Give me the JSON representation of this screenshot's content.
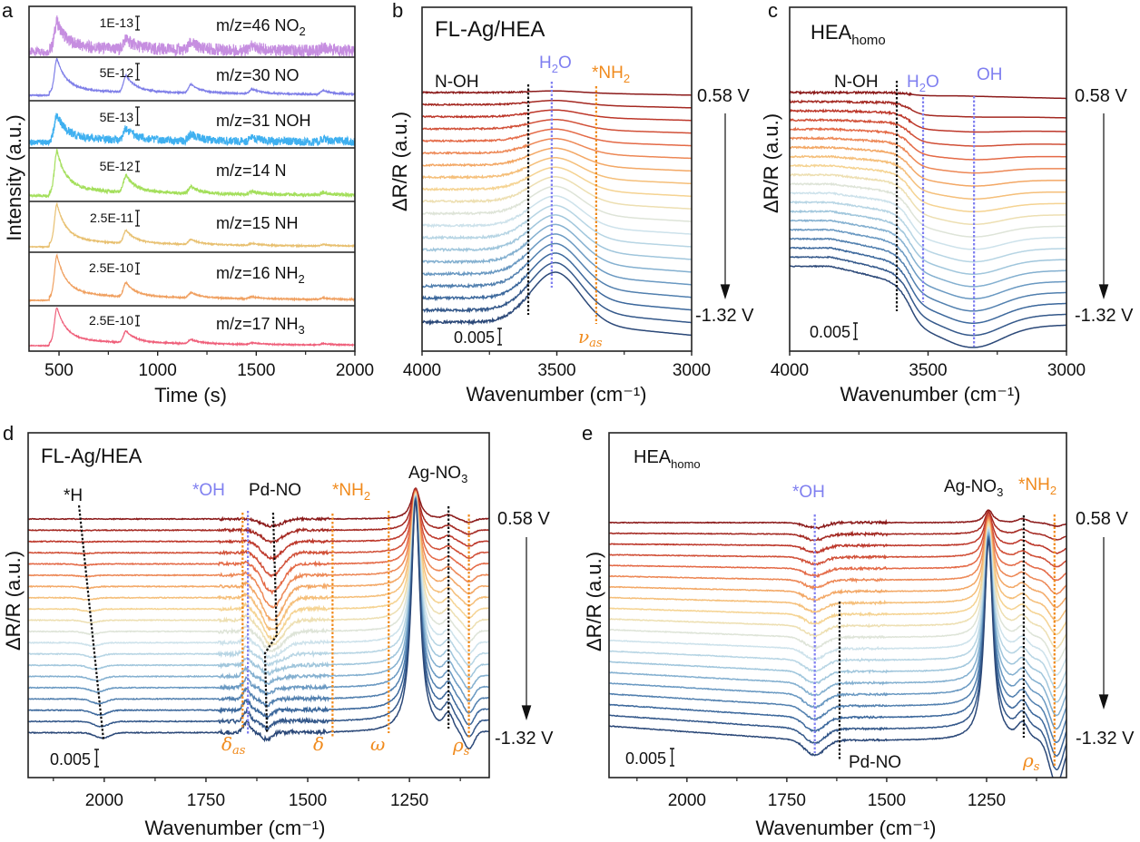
{
  "chart_data": [
    {
      "panel_letter": "a",
      "type": "line",
      "xlabel": "Time (s)",
      "ylabel": "Intensity (a.u.)",
      "xlim": [
        348,
        2000
      ],
      "xticks": [
        500,
        1000,
        1500,
        2000
      ],
      "xtick_labels": [
        "500",
        "1000",
        "1500",
        "2000"
      ],
      "peak_times_s": [
        490,
        840,
        1170,
        1480,
        1840
      ],
      "rows": [
        {
          "label": "m/z=46 NO",
          "sub": "2",
          "scale": "1E-13",
          "color": "#c68ee0",
          "noise": 0.22,
          "peak_amps": [
            1,
            0.38,
            0.26,
            0.15,
            0.12
          ]
        },
        {
          "label": "m/z=30 NO",
          "sub": "",
          "scale": "5E-12",
          "color": "#7f7fe8",
          "noise": 0.02,
          "peak_amps": [
            1,
            0.5,
            0.26,
            0.14,
            0.12
          ]
        },
        {
          "label": "m/z=31 NOH",
          "sub": "",
          "scale": "5E-13",
          "color": "#3fb0f0",
          "noise": 0.16,
          "peak_amps": [
            1,
            0.45,
            0.25,
            0.15,
            0.13
          ]
        },
        {
          "label": "m/z=14 N",
          "sub": "",
          "scale": "5E-12",
          "color": "#a4df5c",
          "noise": 0.04,
          "peak_amps": [
            1,
            0.4,
            0.16,
            0.07,
            0.06
          ]
        },
        {
          "label": "m/z=15 NH",
          "sub": "",
          "scale": "2.5E-11",
          "color": "#e8c070",
          "noise": 0.015,
          "peak_amps": [
            1,
            0.33,
            0.13,
            0.05,
            0.04
          ]
        },
        {
          "label": "m/z=16 NH",
          "sub": "2",
          "scale": "2.5E-10",
          "color": "#f0a060",
          "noise": 0.015,
          "peak_amps": [
            1,
            0.34,
            0.13,
            0.05,
            0.04
          ]
        },
        {
          "label": "m/z=17 NH",
          "sub": "3",
          "scale": "2.5E-10",
          "color": "#ef5f7a",
          "noise": 0.015,
          "peak_amps": [
            1,
            0.33,
            0.12,
            0.05,
            0.04
          ]
        }
      ]
    },
    {
      "panel_letter": "b",
      "type": "line",
      "sample": "FL-Ag/HEA",
      "sample_sub": "",
      "xlabel": "Wavenumber (cm⁻¹)",
      "ylabel": "ΔR/R (a.u.)",
      "xlim": [
        4000,
        3000
      ],
      "xticks": [
        4000,
        3500,
        3000
      ],
      "xtick_labels": [
        "4000",
        "3500",
        "3000"
      ],
      "potential_top": "0.58 V",
      "potential_bottom": "-1.32 V",
      "scale_bar": "0.005",
      "n_curves": 20,
      "offset_step": 0.0037,
      "colormap": [
        "#8b1a1a",
        "#c0392b",
        "#e8704a",
        "#f5b26b",
        "#f5dc9c",
        "#d6e7ee",
        "#a9cde0",
        "#6f9fc6",
        "#3d6a9e",
        "#2b4878"
      ],
      "features": [
        {
          "type": "gauss",
          "center": 3505,
          "width": 130,
          "amp": [
            0.0005,
            0.0153
          ]
        },
        {
          "type": "ramp",
          "from": 3500,
          "to": 3000,
          "amp": [
            -0.0008,
            -0.004
          ]
        },
        {
          "type": "noise",
          "range": [
            4000,
            3600
          ],
          "amp": [
            0.0002,
            0.0004
          ]
        }
      ],
      "lines": [
        {
          "x": 3606,
          "color": "#111111"
        },
        {
          "x": 3519,
          "color": "#7f7ff0"
        },
        {
          "x": 3354,
          "color": "#f08a1c"
        }
      ],
      "labels": [
        {
          "text": "N-OH",
          "sub": "",
          "tail": "",
          "color": "#111111"
        },
        {
          "text": "H",
          "sub": "2",
          "tail": "O",
          "color": "#7f7ff0"
        },
        {
          "text": "*NH",
          "sub": "2",
          "tail": "",
          "color": "#f08a1c"
        }
      ],
      "modes": [
        {
          "sym": "ν",
          "sub": "as"
        }
      ]
    },
    {
      "panel_letter": "c",
      "type": "line",
      "sample": "HEA",
      "sample_sub": "homo",
      "xlabel": "Wavenumber (cm⁻¹)",
      "ylabel": "ΔR/R (a.u.)",
      "xlim": [
        4000,
        3000
      ],
      "xticks": [
        4000,
        3500,
        3000
      ],
      "xtick_labels": [
        "4000",
        "3500",
        "3000"
      ],
      "potential_top": "0.58 V",
      "potential_bottom": "-1.32 V",
      "scale_bar": "0.005",
      "n_curves": 20,
      "offset_step": 0.0028,
      "features": [
        {
          "type": "step",
          "center": 3565,
          "width": 22,
          "amp": [
            -0.001,
            -0.014,
            0.5
          ]
        },
        {
          "type": "gauss",
          "center": 3334,
          "width": 140,
          "amp": [
            0,
            -0.006
          ]
        },
        {
          "type": "ramp",
          "from": 3850,
          "to": 3600,
          "amp": [
            0,
            -0.005
          ]
        },
        {
          "type": "ramp",
          "from": 3400,
          "to": 3000,
          "amp": [
            -0.0008,
            0.001
          ]
        },
        {
          "type": "noise",
          "range": [
            4000,
            3560
          ],
          "amp": [
            0.0003,
            0.00015
          ]
        }
      ],
      "lines": [
        {
          "x": 3613,
          "color": "#111111"
        },
        {
          "x": 3518,
          "color": "#7f7ff0"
        },
        {
          "x": 3334,
          "color": "#7f7ff0"
        }
      ],
      "labels": [
        {
          "text": "N-OH",
          "sub": "",
          "tail": "",
          "color": "#111111"
        },
        {
          "text": "H",
          "sub": "2",
          "tail": "O",
          "color": "#7f7ff0"
        },
        {
          "text": "OH",
          "sub": "",
          "tail": "",
          "color": "#7f7ff0"
        }
      ]
    },
    {
      "panel_letter": "d",
      "type": "line",
      "sample": "FL-Ag/HEA",
      "sample_sub": "",
      "xlabel": "Wavenumber (cm⁻¹)",
      "ylabel": "ΔR/R (a.u.)",
      "xlim": [
        2187,
        1054
      ],
      "xticks": [
        2000,
        1750,
        1500,
        1250
      ],
      "xtick_labels": [
        "2000",
        "1750",
        "1500",
        "1250"
      ],
      "potential_top": "0.58 V",
      "potential_bottom": "-1.32 V",
      "scale_bar": "0.005",
      "n_curves": 20,
      "offset_step": 0.0031,
      "features": [
        {
          "type": "lorentz",
          "center": 1235,
          "width": 13,
          "amp": [
            0.0085,
            0.064
          ]
        },
        {
          "type": "gauss",
          "center": [
            1588,
            1578
          ],
          "width": 35,
          "amp": {
            "peak": -0.009,
            "t": 0.32,
            "w": 0.26
          }
        },
        {
          "type": "gauss",
          "center": 1650,
          "width": 12,
          "amp": [
            0,
            0.003
          ]
        },
        {
          "type": "gauss",
          "center": 1600,
          "width": 15,
          "amp": [
            0,
            -0.002
          ]
        },
        {
          "type": "gauss",
          "center": [
            2060,
            2005
          ],
          "width": 25,
          "amp": [
            0,
            -0.0015
          ]
        },
        {
          "type": "gauss",
          "center": 1154,
          "width": 15,
          "amp": [
            0.001,
            0.004
          ]
        },
        {
          "type": "gauss",
          "center": 1104,
          "width": 18,
          "amp": [
            -0.001,
            -0.005
          ]
        },
        {
          "type": "noise",
          "range": [
            1720,
            1450
          ],
          "amp": [
            0.0003,
            0.0005
          ]
        },
        {
          "type": "noise",
          "range": [
            2187,
            1054
          ],
          "amp": [
            0.00012,
            0.00012
          ]
        }
      ],
      "lines": [
        {
          "x": [
            2062,
            2002
          ],
          "color": "#111111"
        },
        {
          "x": 1660,
          "color": "#f08a1c"
        },
        {
          "x": 1647,
          "color": "#7f7ff0"
        },
        {
          "x": [
            1585,
            1576,
            1605,
            1600
          ],
          "color": "#111111"
        },
        {
          "x": 1439,
          "color": "#f08a1c"
        },
        {
          "x": 1301,
          "color": "#f08a1c"
        },
        {
          "x": 1154,
          "color": "#111111"
        },
        {
          "x": 1104,
          "color": "#f08a1c"
        }
      ],
      "labels": [
        {
          "text": "*H",
          "sub": "",
          "tail": "",
          "color": "#111111"
        },
        {
          "text": "*OH",
          "sub": "",
          "tail": "",
          "color": "#7f7ff0"
        },
        {
          "text": "Pd-NO",
          "sub": "",
          "tail": "",
          "color": "#111111"
        },
        {
          "text": "*NH",
          "sub": "2",
          "tail": "",
          "color": "#f08a1c"
        },
        {
          "text": "Ag-NO",
          "sub": "3",
          "tail": "",
          "color": "#111111"
        }
      ],
      "modes": [
        {
          "sym": "δ",
          "sub": "as"
        },
        {
          "sym": "δ",
          "sub": ""
        },
        {
          "sym": "ω",
          "sub": ""
        },
        {
          "sym": "ρ",
          "sub": "s"
        }
      ]
    },
    {
      "panel_letter": "e",
      "type": "line",
      "sample": "HEA",
      "sample_sub": "homo",
      "xlabel": "Wavenumber (cm⁻¹)",
      "ylabel": "ΔR/R (a.u.)",
      "xlim": [
        2195,
        1050
      ],
      "xticks": [
        2000,
        1750,
        1500,
        1250
      ],
      "xtick_labels": [
        "2000",
        "1750",
        "1500",
        "1250"
      ],
      "potential_top": "0.58 V",
      "potential_bottom": "-1.32 V",
      "scale_bar": "0.005",
      "n_curves": 20,
      "offset_step": 0.00295,
      "features": [
        {
          "type": "lorentz",
          "center": 1245,
          "width": 13,
          "amp": [
            0.0035,
            0.055
          ]
        },
        {
          "type": "ramp",
          "from": 2195,
          "to": 1700,
          "amp": [
            0,
            -0.004
          ]
        },
        {
          "type": "gauss",
          "center": 1680,
          "width": 35,
          "amp": [
            -0.0015,
            -0.004
          ]
        },
        {
          "type": "gauss",
          "center": 1160,
          "width": 18,
          "amp": [
            0.001,
            0.004
          ]
        },
        {
          "type": "gauss",
          "center": 1075,
          "width": 25,
          "amp": [
            -0.001,
            -0.012
          ]
        },
        {
          "type": "noise",
          "range": [
            1720,
            1500
          ],
          "amp": [
            0.0003,
            0.0002
          ]
        },
        {
          "type": "noise",
          "range": [
            2195,
            1050
          ],
          "amp": [
            0.0001,
            0.0001
          ]
        }
      ],
      "lines": [
        {
          "x": 1680,
          "color": "#7f7ff0"
        },
        {
          "x": 1618,
          "color": "#111111"
        },
        {
          "x": 1157,
          "color": "#111111"
        },
        {
          "x": 1080,
          "color": "#f08a1c"
        }
      ],
      "labels": [
        {
          "text": "*OH",
          "sub": "",
          "tail": "",
          "color": "#7f7ff0"
        },
        {
          "text": "Ag-NO",
          "sub": "3",
          "tail": "",
          "color": "#111111"
        },
        {
          "text": "*NH",
          "sub": "2",
          "tail": "",
          "color": "#f08a1c"
        },
        {
          "text": "Pd-NO",
          "sub": "",
          "tail": "",
          "color": "#111111"
        }
      ],
      "modes": [
        {
          "sym": "ρ",
          "sub": "s"
        }
      ]
    }
  ]
}
